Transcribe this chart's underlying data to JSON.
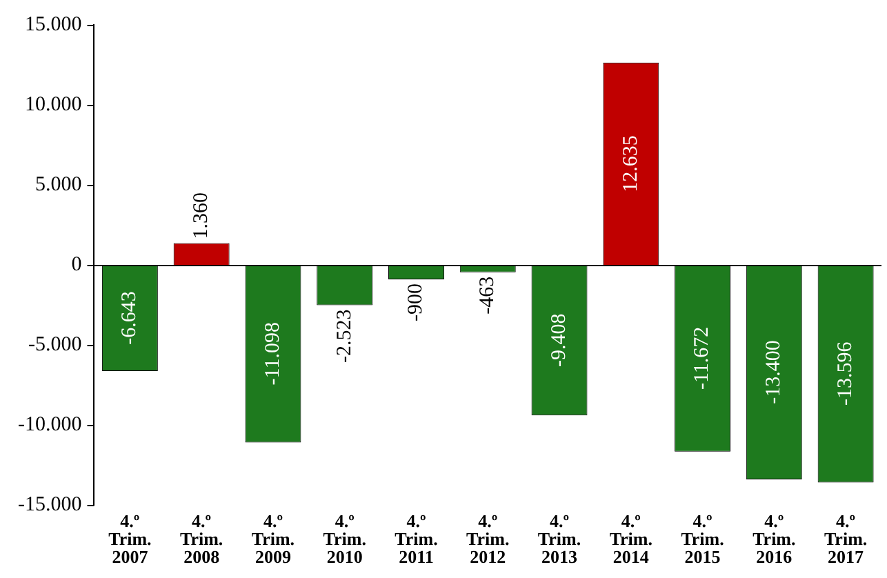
{
  "chart_data": {
    "type": "bar",
    "categories": [
      "4.º Trim. 2007",
      "4.º Trim. 2008",
      "4.º Trim. 2009",
      "4.º Trim. 2010",
      "4.º Trim. 2011",
      "4.º Trim. 2012",
      "4.º Trim. 2013",
      "4.º Trim. 2014",
      "4.º Trim. 2015",
      "4.º Trim. 2016",
      "4.º Trim. 2017"
    ],
    "values": [
      -6643,
      1360,
      -11098,
      -2523,
      -900,
      -463,
      -9408,
      12635,
      -11672,
      -13400,
      -13596
    ],
    "colors": [
      "#1e7a1e",
      "#c00000",
      "#1e7a1e",
      "#1e7a1e",
      "#1e7a1e",
      "#1e7a1e",
      "#1e7a1e",
      "#c00000",
      "#1e7a1e",
      "#1e7a1e",
      "#1e7a1e"
    ],
    "value_labels": [
      "-6.643",
      "1.360",
      "-11.098",
      "-2.523",
      "-900",
      "-463",
      "-9.408",
      "12.635",
      "-11.672",
      "-13.400",
      "-13.596"
    ],
    "ylim": [
      -15000,
      15000
    ],
    "yticks": [
      {
        "value": -15000,
        "label": "-15.000"
      },
      {
        "value": -10000,
        "label": "-10.000"
      },
      {
        "value": -5000,
        "label": "-5.000"
      },
      0,
      {
        "value": 5000,
        "label": "5.000"
      },
      {
        "value": 10000,
        "label": "10.000"
      },
      {
        "value": 15000,
        "label": "15.000"
      }
    ],
    "ref_lines": [
      {
        "axis": "y",
        "value": 0,
        "color": "#000000"
      }
    ],
    "grid": false,
    "legend": false
  }
}
